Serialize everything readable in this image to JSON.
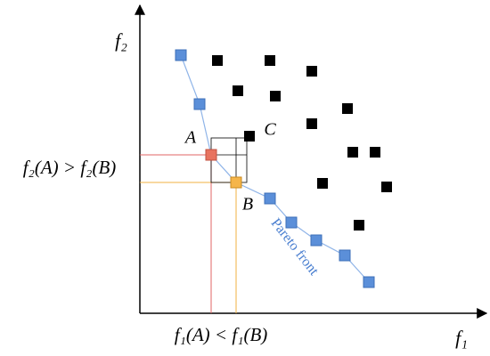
{
  "axes": {
    "x_label": "f₁",
    "y_label": "f₂"
  },
  "points": {
    "a": "A",
    "b": "B",
    "c": "C"
  },
  "comparisons": {
    "f2": "f₂(A) > f₂(B)",
    "f1": "f₁(A) < f₁(B)"
  },
  "pareto_front_label": "Pareto front"
}
